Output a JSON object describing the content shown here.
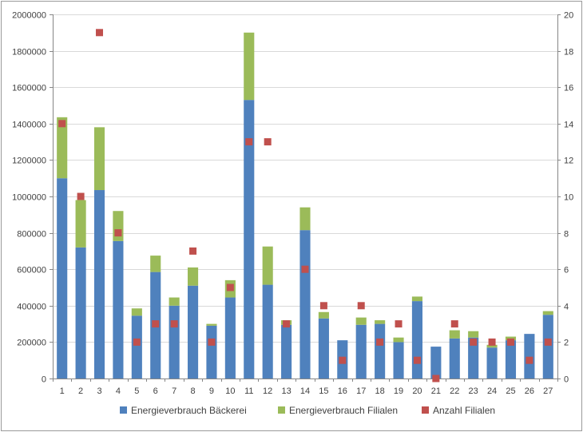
{
  "colors": {
    "bakery": "#4F81BD",
    "branches": "#9BBB59",
    "count": "#C0504D",
    "grid": "#d9d9d9",
    "axis": "#868686",
    "text": "#404040"
  },
  "chart_data": {
    "type": "bar",
    "stacked": true,
    "title": "",
    "xlabel": "",
    "ylabel": "",
    "categories": [
      "1",
      "2",
      "3",
      "4",
      "5",
      "6",
      "7",
      "8",
      "9",
      "10",
      "11",
      "12",
      "13",
      "14",
      "15",
      "16",
      "17",
      "18",
      "19",
      "20",
      "21",
      "22",
      "23",
      "24",
      "25",
      "26",
      "27"
    ],
    "series": [
      {
        "name": "Energieverbrauch Bäckerei",
        "kind": "bar",
        "axis": "left",
        "values": [
          1100000,
          720000,
          1035000,
          755000,
          345000,
          585000,
          400000,
          510000,
          290000,
          445000,
          1530000,
          515000,
          295000,
          815000,
          330000,
          210000,
          295000,
          300000,
          200000,
          425000,
          175000,
          220000,
          225000,
          170000,
          210000,
          245000,
          350000
        ]
      },
      {
        "name": "Energieverbrauch Filialen",
        "kind": "bar",
        "axis": "left",
        "values": [
          335000,
          260000,
          345000,
          165000,
          40000,
          90000,
          45000,
          100000,
          10000,
          95000,
          370000,
          210000,
          25000,
          125000,
          35000,
          0,
          40000,
          20000,
          25000,
          25000,
          0,
          45000,
          35000,
          15000,
          20000,
          0,
          20000
        ]
      },
      {
        "name": "Anzahl Filialen",
        "kind": "marker",
        "axis": "right",
        "values": [
          14,
          10,
          19,
          8,
          2,
          3,
          3,
          7,
          2,
          5,
          13,
          13,
          3,
          6,
          4,
          1,
          4,
          2,
          3,
          1,
          0,
          3,
          2,
          2,
          2,
          1,
          2
        ]
      }
    ],
    "y_left": {
      "min": 0,
      "max": 2000000,
      "ticks": [
        "0",
        "200000",
        "400000",
        "600000",
        "800000",
        "1000000",
        "1200000",
        "1400000",
        "1600000",
        "1800000",
        "2000000"
      ]
    },
    "y_right": {
      "min": 0,
      "max": 20,
      "ticks": [
        "0",
        "2",
        "4",
        "6",
        "8",
        "10",
        "12",
        "14",
        "16",
        "18",
        "20"
      ]
    },
    "grid": true,
    "legend_position": "bottom",
    "legend": [
      "Energieverbrauch Bäckerei",
      "Energieverbrauch Filialen",
      "Anzahl Filialen"
    ]
  }
}
